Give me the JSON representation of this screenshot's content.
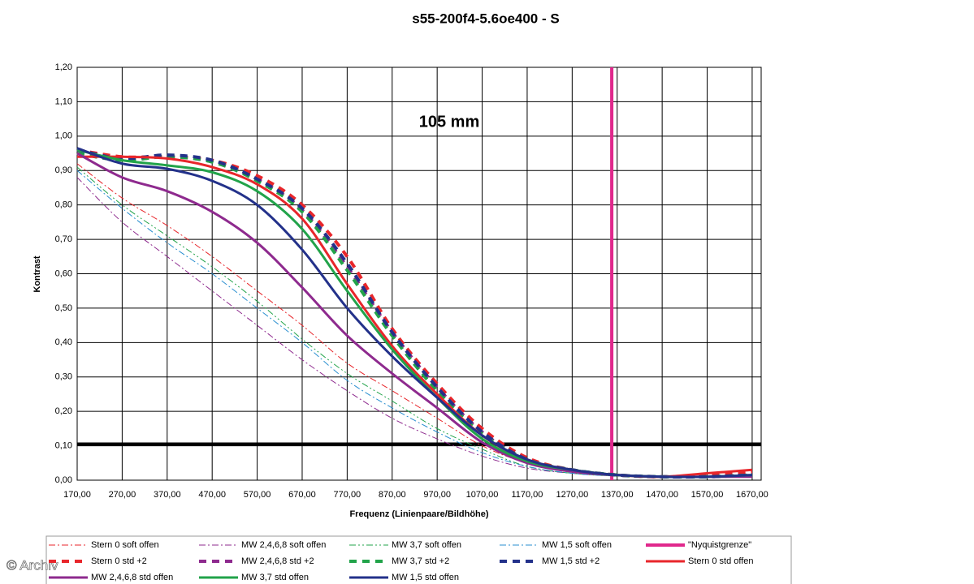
{
  "chart_data": {
    "type": "line",
    "title": "s55-200f4-5.6oe400 - S",
    "annotation": "105 mm",
    "x_label": "Frequenz (Linienpaare/Bildhöhe)",
    "y_label": "Kontrast",
    "watermark": "© Archiv",
    "grid": true,
    "reference_line": {
      "value": 0.105,
      "color": "#000000"
    },
    "xlim": [
      170,
      1690
    ],
    "ylim": [
      0,
      1.2
    ],
    "xticks": [
      {
        "value": 170,
        "label": "170,00"
      },
      {
        "value": 270,
        "label": "270,00"
      },
      {
        "value": 370,
        "label": "370,00"
      },
      {
        "value": 470,
        "label": "470,00"
      },
      {
        "value": 570,
        "label": "570,00"
      },
      {
        "value": 670,
        "label": "670,00"
      },
      {
        "value": 770,
        "label": "770,00"
      },
      {
        "value": 870,
        "label": "870,00"
      },
      {
        "value": 970,
        "label": "970,00"
      },
      {
        "value": 1070,
        "label": "1070,00"
      },
      {
        "value": 1170,
        "label": "1170,00"
      },
      {
        "value": 1270,
        "label": "1270,00"
      },
      {
        "value": 1370,
        "label": "1370,00"
      },
      {
        "value": 1470,
        "label": "1470,00"
      },
      {
        "value": 1570,
        "label": "1570,00"
      },
      {
        "value": 1670,
        "label": "1670,00"
      }
    ],
    "yticks": [
      {
        "value": 0,
        "label": "0,00"
      },
      {
        "value": 0.1,
        "label": "0,10"
      },
      {
        "value": 0.2,
        "label": "0,20"
      },
      {
        "value": 0.3,
        "label": "0,30"
      },
      {
        "value": 0.4,
        "label": "0,40"
      },
      {
        "value": 0.5,
        "label": "0,50"
      },
      {
        "value": 0.6,
        "label": "0,60"
      },
      {
        "value": 0.7,
        "label": "0,70"
      },
      {
        "value": 0.8,
        "label": "0,80"
      },
      {
        "value": 0.9,
        "label": "0,90"
      },
      {
        "value": 1,
        "label": "1,00"
      },
      {
        "value": 1.1,
        "label": "1,10"
      },
      {
        "value": 1.2,
        "label": "1,20"
      }
    ],
    "x": [
      170,
      270,
      370,
      470,
      570,
      670,
      770,
      870,
      970,
      1070,
      1170,
      1270,
      1370,
      1470,
      1570,
      1670
    ],
    "series": [
      {
        "name": "Stern 0 soft offen",
        "color": "#e8262b",
        "style": "dashdot",
        "width": 1,
        "values": [
          0.92,
          0.82,
          0.74,
          0.65,
          0.55,
          0.45,
          0.34,
          0.26,
          0.18,
          0.1,
          0.05,
          0.025,
          0.015,
          0.01,
          0.01,
          0.01
        ]
      },
      {
        "name": "MW 2,4,6,8 soft offen",
        "color": "#8e2a8e",
        "style": "dashdot",
        "width": 1,
        "values": [
          0.88,
          0.75,
          0.65,
          0.55,
          0.45,
          0.35,
          0.26,
          0.18,
          0.12,
          0.07,
          0.035,
          0.02,
          0.012,
          0.01,
          0.01,
          0.01
        ]
      },
      {
        "name": "MW 3,7 soft offen",
        "color": "#22a34a",
        "style": "dashdotdot",
        "width": 1,
        "values": [
          0.91,
          0.8,
          0.71,
          0.62,
          0.52,
          0.41,
          0.31,
          0.23,
          0.15,
          0.09,
          0.04,
          0.02,
          0.012,
          0.01,
          0.01,
          0.01
        ]
      },
      {
        "name": "MW 1,5 soft offen",
        "color": "#2a8fd0",
        "style": "dashdot",
        "width": 1,
        "values": [
          0.9,
          0.79,
          0.69,
          0.6,
          0.5,
          0.4,
          0.29,
          0.21,
          0.14,
          0.08,
          0.04,
          0.02,
          0.012,
          0.01,
          0.01,
          0.01
        ]
      },
      {
        "name": "\"Nyquistgrenze\"",
        "color": "#e0288c",
        "style": "solid",
        "width": 4,
        "x": [
          1358,
          1358
        ],
        "values": [
          0,
          1.2
        ]
      },
      {
        "name": "Stern 0 std +2",
        "color": "#e8262b",
        "style": "dashed",
        "width": 4,
        "values": [
          0.96,
          0.94,
          0.94,
          0.93,
          0.885,
          0.8,
          0.65,
          0.44,
          0.28,
          0.15,
          0.065,
          0.03,
          0.015,
          0.01,
          0.015,
          0.025
        ]
      },
      {
        "name": "MW 2,4,6,8 std +2",
        "color": "#8e2a8e",
        "style": "dashed",
        "width": 4,
        "values": [
          0.95,
          0.93,
          0.94,
          0.925,
          0.875,
          0.785,
          0.62,
          0.43,
          0.27,
          0.14,
          0.06,
          0.03,
          0.015,
          0.01,
          0.01,
          0.015
        ]
      },
      {
        "name": "MW 3,7 std +2",
        "color": "#22a34a",
        "style": "dashed",
        "width": 4,
        "values": [
          0.95,
          0.93,
          0.94,
          0.925,
          0.87,
          0.78,
          0.61,
          0.42,
          0.26,
          0.135,
          0.06,
          0.03,
          0.015,
          0.01,
          0.01,
          0.015
        ]
      },
      {
        "name": "MW 1,5 std +2",
        "color": "#23318a",
        "style": "dashed",
        "width": 4,
        "values": [
          0.96,
          0.935,
          0.945,
          0.93,
          0.875,
          0.79,
          0.63,
          0.43,
          0.27,
          0.14,
          0.06,
          0.03,
          0.015,
          0.01,
          0.01,
          0.015
        ]
      },
      {
        "name": "Stern 0 std offen",
        "color": "#e8262b",
        "style": "solid",
        "width": 3,
        "values": [
          0.94,
          0.94,
          0.935,
          0.91,
          0.86,
          0.76,
          0.57,
          0.39,
          0.25,
          0.13,
          0.06,
          0.03,
          0.015,
          0.01,
          0.02,
          0.03
        ]
      },
      {
        "name": "MW 2,4,6,8 std offen",
        "color": "#8e2a8e",
        "style": "solid",
        "width": 3,
        "values": [
          0.95,
          0.88,
          0.84,
          0.78,
          0.69,
          0.56,
          0.42,
          0.31,
          0.21,
          0.11,
          0.05,
          0.025,
          0.015,
          0.01,
          0.01,
          0.01
        ]
      },
      {
        "name": "MW 3,7 std offen",
        "color": "#22a34a",
        "style": "solid",
        "width": 3,
        "values": [
          0.96,
          0.93,
          0.915,
          0.895,
          0.84,
          0.73,
          0.55,
          0.38,
          0.24,
          0.12,
          0.055,
          0.03,
          0.015,
          0.01,
          0.01,
          0.015
        ]
      },
      {
        "name": "MW 1,5 std offen",
        "color": "#23318a",
        "style": "solid",
        "width": 3,
        "values": [
          0.965,
          0.92,
          0.905,
          0.87,
          0.8,
          0.67,
          0.5,
          0.36,
          0.24,
          0.13,
          0.06,
          0.03,
          0.015,
          0.01,
          0.01,
          0.015
        ]
      }
    ]
  }
}
